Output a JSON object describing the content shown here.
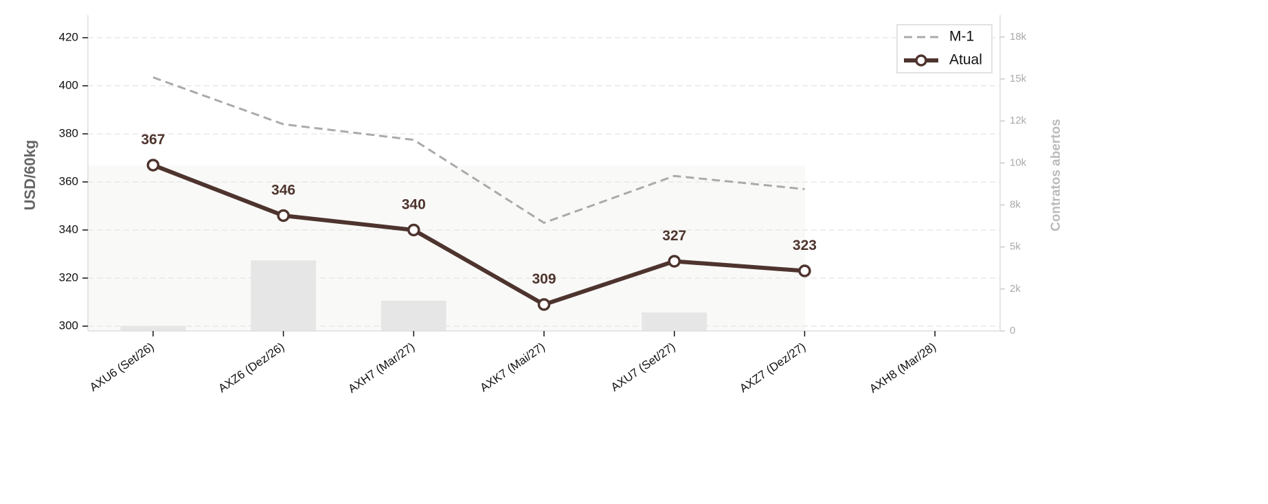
{
  "chart_data": {
    "type": "line",
    "ylabel": "USD/60kg",
    "y2label": "Contratos abertos",
    "categories": [
      "AXU6 (Set/26)",
      "AXZ6 (Dez/26)",
      "AXH7 (Mar/27)",
      "AXK7 (Mai/27)",
      "AXU7 (Set/27)",
      "AXZ7 (Dez/27)",
      "AXH8 (Mar/28)"
    ],
    "series": [
      {
        "name": "M-1",
        "color": "#aaaaaa",
        "dashed": true,
        "values": [
          403.5,
          384,
          377.5,
          343,
          362.5,
          357,
          null
        ]
      },
      {
        "name": "Atual",
        "color": "#4e342e",
        "markers": true,
        "data_labels": true,
        "values": [
          367,
          346,
          340,
          309,
          327,
          323,
          null
        ]
      }
    ],
    "bars": {
      "axis": "y2",
      "color": "#e6e6e6",
      "values": [
        300,
        4200,
        1800,
        0,
        1100,
        0,
        0
      ]
    },
    "ylim": [
      298,
      429.4
    ],
    "yticks": [
      300,
      320,
      340,
      360,
      380,
      400,
      420
    ],
    "y2lim": [
      0,
      18800
    ],
    "y2ticks": [
      0,
      {
        "value": 2500,
        "label": "2k"
      },
      {
        "value": 5000,
        "label": "5k"
      },
      {
        "value": 7500,
        "label": "8k"
      },
      {
        "value": 10000,
        "label": "10k"
      },
      {
        "value": 12500,
        "label": "12k"
      },
      {
        "value": 15000,
        "label": "15k"
      },
      {
        "value": 17500,
        "label": "18k"
      }
    ],
    "grid": true,
    "legend": "upper right"
  }
}
